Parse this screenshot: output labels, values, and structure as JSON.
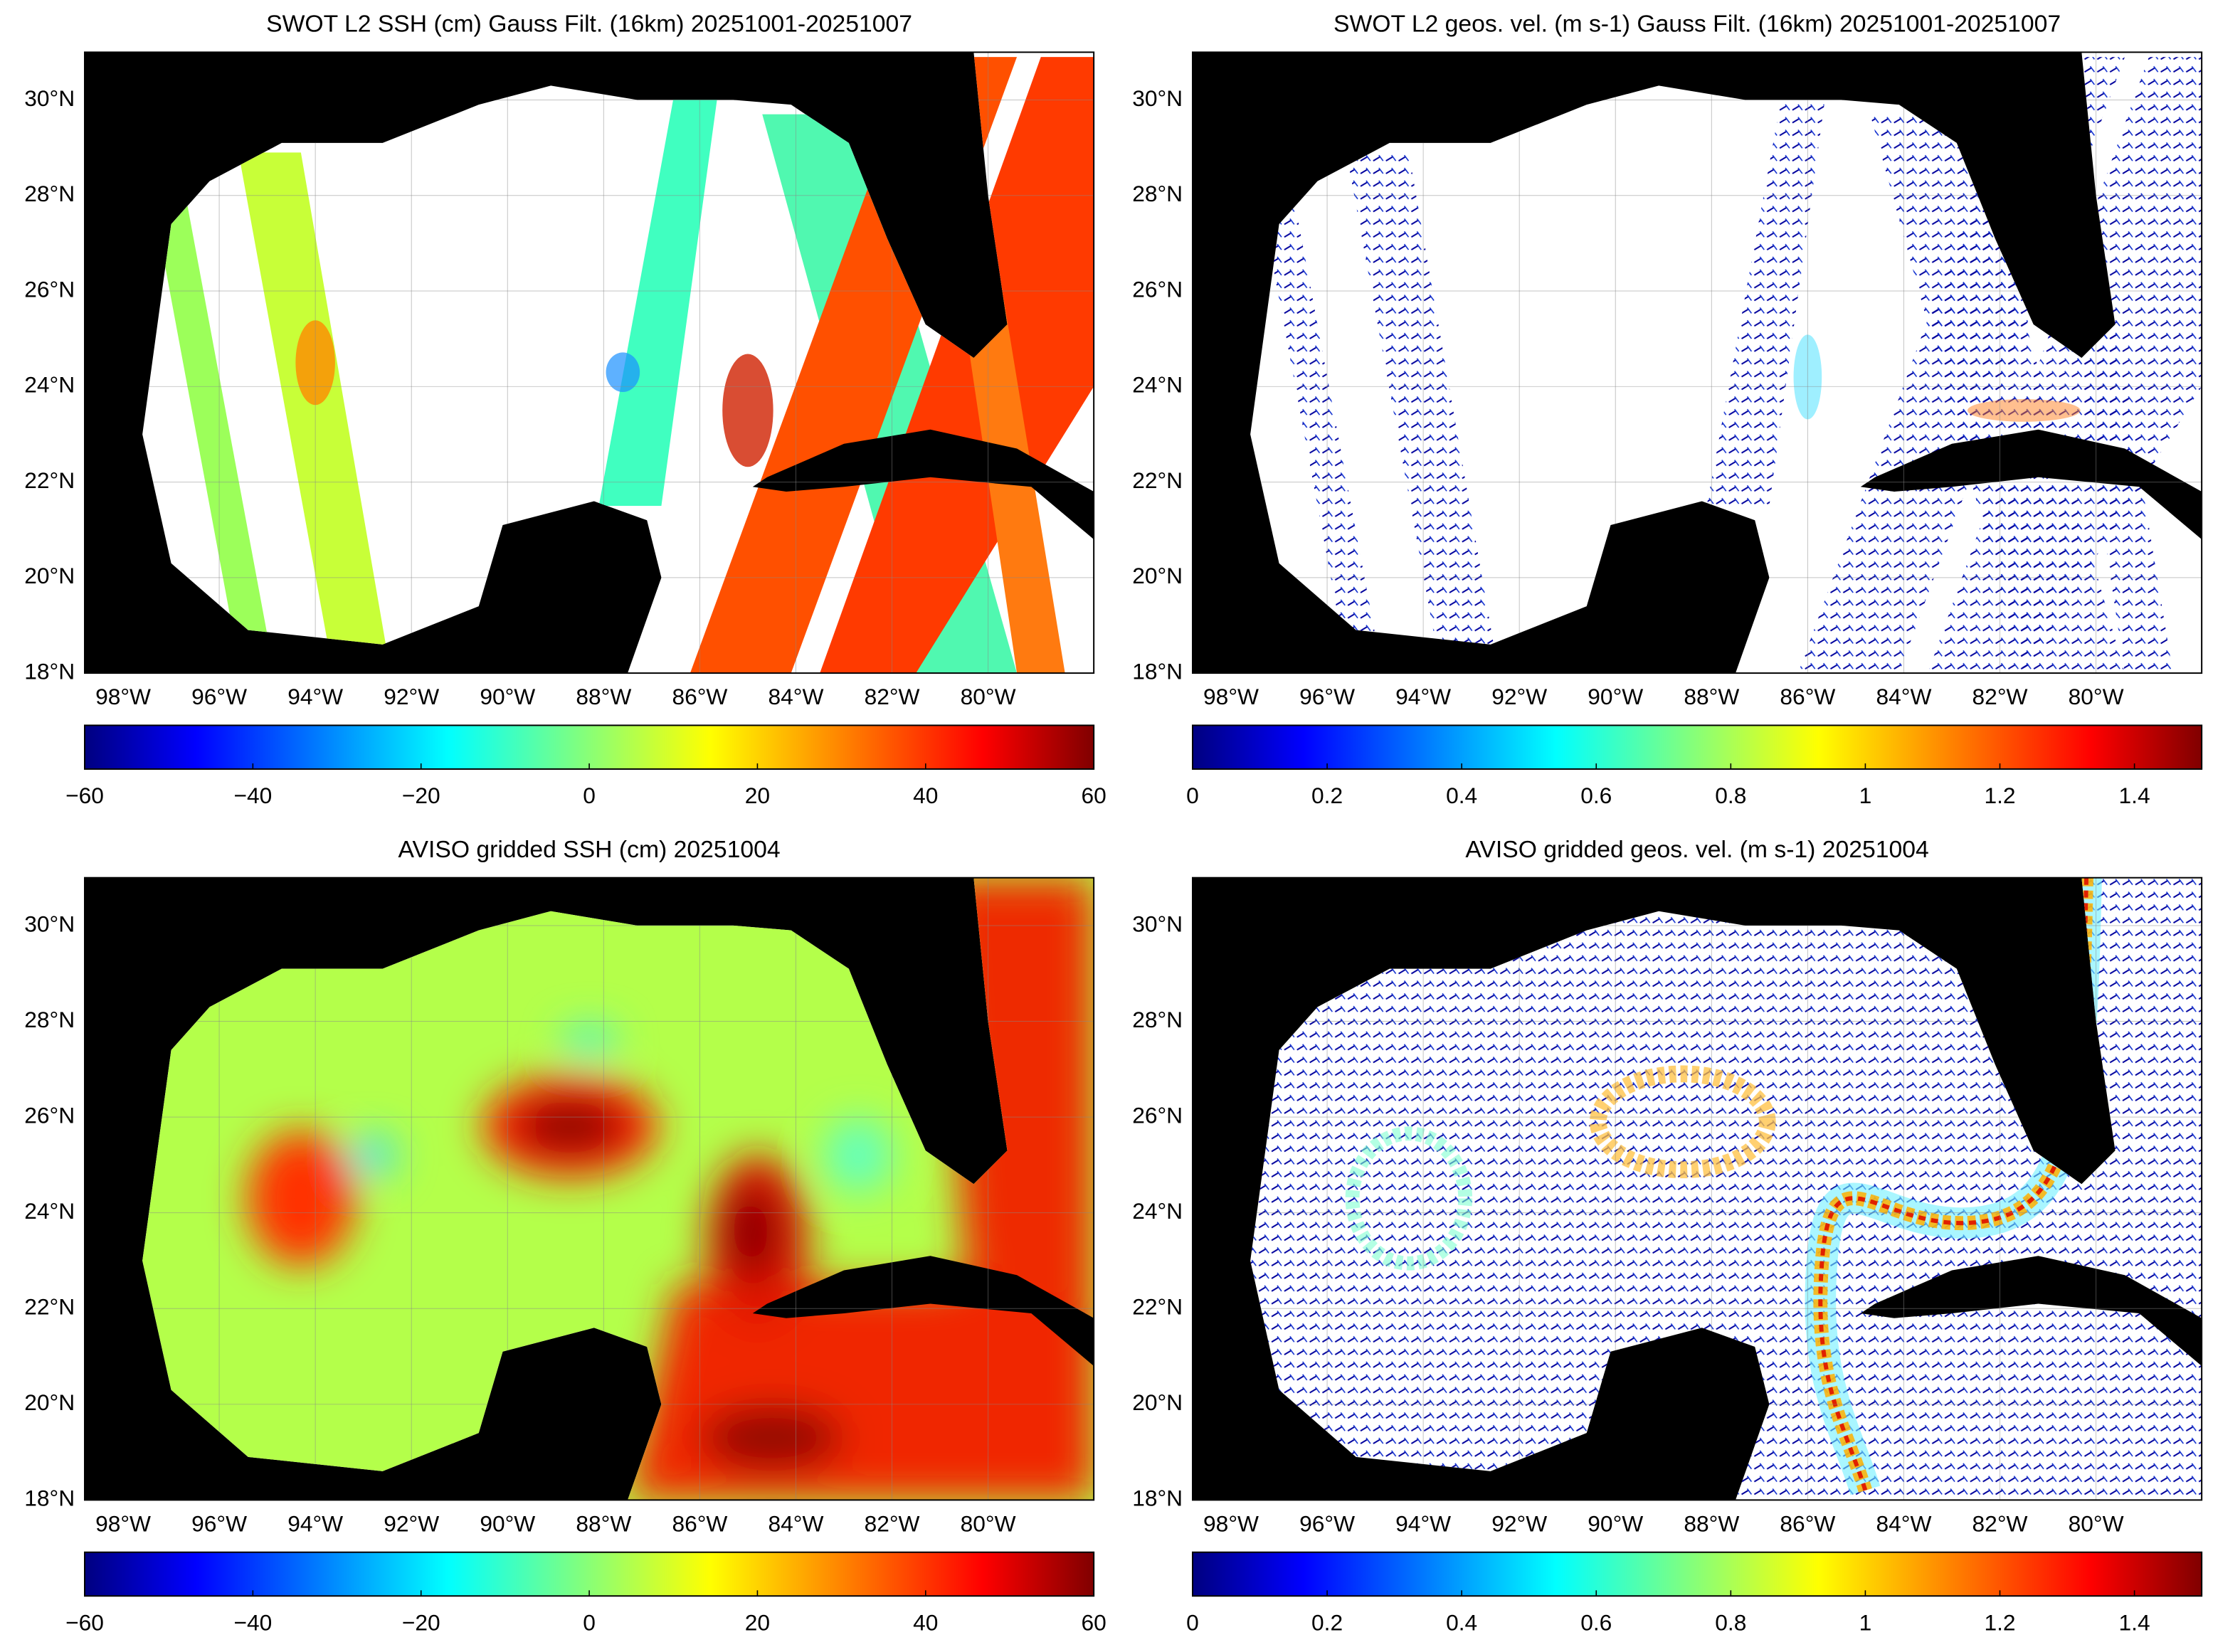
{
  "panels": [
    {
      "title": "SWOT L2 SSH (cm) Gauss Filt. (16km) 20251001-20251007",
      "lonlim": [
        -98.8,
        -77.8
      ],
      "latlim": [
        18,
        31
      ],
      "grid": true,
      "lon_ticks": [
        {
          "value": -98,
          "label": "98°W"
        },
        {
          "value": -96,
          "label": "96°W"
        },
        {
          "value": -94,
          "label": "94°W"
        },
        {
          "value": -92,
          "label": "92°W"
        },
        {
          "value": -90,
          "label": "90°W"
        },
        {
          "value": -88,
          "label": "88°W"
        },
        {
          "value": -86,
          "label": "86°W"
        },
        {
          "value": -84,
          "label": "84°W"
        },
        {
          "value": -82,
          "label": "82°W"
        },
        {
          "value": -80,
          "label": "80°W"
        }
      ],
      "lat_ticks": [
        {
          "value": 18,
          "label": "18°N"
        },
        {
          "value": 20,
          "label": "20°N"
        },
        {
          "value": 22,
          "label": "22°N"
        },
        {
          "value": 24,
          "label": "24°N"
        },
        {
          "value": 26,
          "label": "26°N"
        },
        {
          "value": 28,
          "label": "28°N"
        },
        {
          "value": 30,
          "label": "30°N"
        }
      ],
      "colorbar": {
        "colormap": "jet",
        "lim": [
          -60,
          60
        ],
        "ticks": [
          {
            "value": -60,
            "label": "−60"
          },
          {
            "value": -40,
            "label": "−40"
          },
          {
            "value": -20,
            "label": "−20"
          },
          0,
          20,
          40,
          60
        ]
      }
    },
    {
      "title": "SWOT L2 geos. vel. (m s-1) Gauss Filt. (16km) 20251001-20251007",
      "lonlim": [
        -98.8,
        -77.8
      ],
      "latlim": [
        18,
        31
      ],
      "grid": true,
      "lon_ticks": [
        {
          "value": -98,
          "label": "98°W"
        },
        {
          "value": -96,
          "label": "96°W"
        },
        {
          "value": -94,
          "label": "94°W"
        },
        {
          "value": -92,
          "label": "92°W"
        },
        {
          "value": -90,
          "label": "90°W"
        },
        {
          "value": -88,
          "label": "88°W"
        },
        {
          "value": -86,
          "label": "86°W"
        },
        {
          "value": -84,
          "label": "84°W"
        },
        {
          "value": -82,
          "label": "82°W"
        },
        {
          "value": -80,
          "label": "80°W"
        }
      ],
      "lat_ticks": [
        {
          "value": 18,
          "label": "18°N"
        },
        {
          "value": 20,
          "label": "20°N"
        },
        {
          "value": 22,
          "label": "22°N"
        },
        {
          "value": 24,
          "label": "24°N"
        },
        {
          "value": 26,
          "label": "26°N"
        },
        {
          "value": 28,
          "label": "28°N"
        },
        {
          "value": 30,
          "label": "30°N"
        }
      ],
      "colorbar": {
        "colormap": "jet",
        "lim": [
          0,
          1.5
        ],
        "ticks": [
          0,
          0.2,
          0.4,
          0.6,
          0.8,
          1,
          1.2,
          1.4
        ]
      }
    },
    {
      "title": "AVISO gridded SSH (cm) 20251004",
      "lonlim": [
        -98.8,
        -77.8
      ],
      "latlim": [
        18,
        31
      ],
      "grid": true,
      "lon_ticks": [
        {
          "value": -98,
          "label": "98°W"
        },
        {
          "value": -96,
          "label": "96°W"
        },
        {
          "value": -94,
          "label": "94°W"
        },
        {
          "value": -92,
          "label": "92°W"
        },
        {
          "value": -90,
          "label": "90°W"
        },
        {
          "value": -88,
          "label": "88°W"
        },
        {
          "value": -86,
          "label": "86°W"
        },
        {
          "value": -84,
          "label": "84°W"
        },
        {
          "value": -82,
          "label": "82°W"
        },
        {
          "value": -80,
          "label": "80°W"
        }
      ],
      "lat_ticks": [
        {
          "value": 18,
          "label": "18°N"
        },
        {
          "value": 20,
          "label": "20°N"
        },
        {
          "value": 22,
          "label": "22°N"
        },
        {
          "value": 24,
          "label": "24°N"
        },
        {
          "value": 26,
          "label": "26°N"
        },
        {
          "value": 28,
          "label": "28°N"
        },
        {
          "value": 30,
          "label": "30°N"
        }
      ],
      "colorbar": {
        "colormap": "jet",
        "lim": [
          -60,
          60
        ],
        "ticks": [
          {
            "value": -60,
            "label": "−60"
          },
          {
            "value": -40,
            "label": "−40"
          },
          {
            "value": -20,
            "label": "−20"
          },
          0,
          20,
          40,
          60
        ]
      }
    },
    {
      "title": "AVISO gridded geos. vel. (m s-1)  20251004",
      "lonlim": [
        -98.8,
        -77.8
      ],
      "latlim": [
        18,
        31
      ],
      "grid": true,
      "lon_ticks": [
        {
          "value": -98,
          "label": "98°W"
        },
        {
          "value": -96,
          "label": "96°W"
        },
        {
          "value": -94,
          "label": "94°W"
        },
        {
          "value": -92,
          "label": "92°W"
        },
        {
          "value": -90,
          "label": "90°W"
        },
        {
          "value": -88,
          "label": "88°W"
        },
        {
          "value": -86,
          "label": "86°W"
        },
        {
          "value": -84,
          "label": "84°W"
        },
        {
          "value": -82,
          "label": "82°W"
        },
        {
          "value": -80,
          "label": "80°W"
        }
      ],
      "lat_ticks": [
        {
          "value": 18,
          "label": "18°N"
        },
        {
          "value": 20,
          "label": "20°N"
        },
        {
          "value": 22,
          "label": "22°N"
        },
        {
          "value": 24,
          "label": "24°N"
        },
        {
          "value": 26,
          "label": "26°N"
        },
        {
          "value": 28,
          "label": "28°N"
        },
        {
          "value": 30,
          "label": "30°N"
        }
      ],
      "colorbar": {
        "colormap": "jet",
        "lim": [
          0,
          1.5
        ],
        "ticks": [
          0,
          0.2,
          0.4,
          0.6,
          0.8,
          1,
          1.2,
          1.4
        ]
      }
    }
  ]
}
